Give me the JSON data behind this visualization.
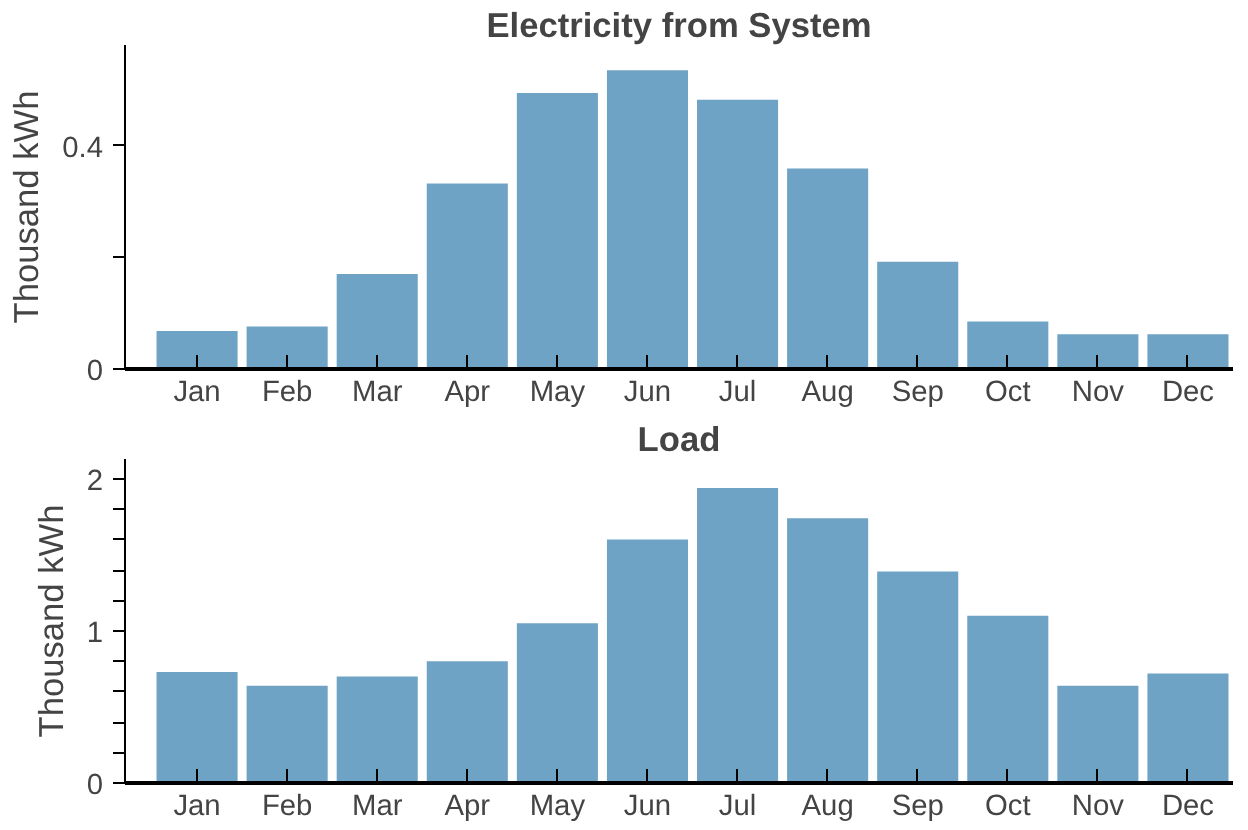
{
  "chart_data": [
    {
      "type": "bar",
      "title": "Electricity from System",
      "ylabel": "Thousand kWh",
      "categories": [
        "Jan",
        "Feb",
        "Mar",
        "Apr",
        "May",
        "Jun",
        "Jul",
        "Aug",
        "Sep",
        "Oct",
        "Nov",
        "Dec"
      ],
      "series": [
        {
          "color": "#6fa3c5",
          "values": [
            0.068,
            0.076,
            0.17,
            0.332,
            0.494,
            0.535,
            0.482,
            0.359,
            0.192,
            0.085,
            0.062,
            0.062
          ]
        }
      ],
      "ylim": [
        0,
        0.58
      ],
      "yticks": [
        0,
        {
          "value": 0.2,
          "label": null
        },
        0.4
      ],
      "grid": false
    },
    {
      "type": "bar",
      "title": "Load",
      "ylabel": "Thousand kWh",
      "categories": [
        "Jan",
        "Feb",
        "Mar",
        "Apr",
        "May",
        "Jun",
        "Jul",
        "Aug",
        "Sep",
        "Oct",
        "Nov",
        "Dec"
      ],
      "series": [
        {
          "color": "#6fa3c5",
          "values": [
            0.73,
            0.64,
            0.7,
            0.8,
            1.05,
            1.6,
            1.94,
            1.74,
            1.39,
            1.1,
            0.64,
            0.72
          ]
        }
      ],
      "ylim": [
        0,
        2.13
      ],
      "yticks": [
        0,
        {
          "value": 0.2,
          "label": null
        },
        {
          "value": 0.4,
          "label": null
        },
        {
          "value": 0.6,
          "label": null
        },
        {
          "value": 0.8,
          "label": null
        },
        1,
        {
          "value": 1.2,
          "label": null
        },
        {
          "value": 1.4,
          "label": null
        },
        {
          "value": 1.6,
          "label": null
        },
        {
          "value": 1.8,
          "label": null
        },
        2
      ],
      "grid": false
    }
  ]
}
